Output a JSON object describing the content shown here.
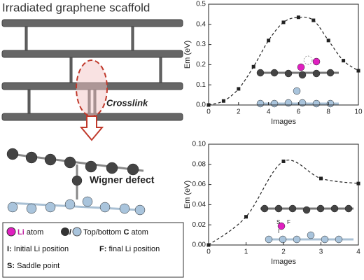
{
  "chart_data": [
    {
      "type": "line",
      "x": [
        0,
        1,
        2,
        3,
        4,
        5,
        6,
        7,
        8,
        9,
        10
      ],
      "values": [
        0.0,
        0.02,
        0.08,
        0.19,
        0.32,
        0.41,
        0.435,
        0.42,
        0.32,
        0.22,
        0.17
      ],
      "color": "#222222",
      "xlabel": "Images",
      "ylabel": "Em (eV)",
      "xlim": [
        0,
        10
      ],
      "xticks": [
        0,
        2,
        4,
        6,
        8,
        10
      ],
      "ylim": [
        0,
        0.5
      ],
      "yticks": [
        {
          "value": 0,
          "label": "0.0"
        },
        0.1,
        0.2,
        0.3,
        0.4,
        0.5
      ]
    },
    {
      "type": "line",
      "x": [
        0,
        1,
        2,
        3,
        4
      ],
      "values": [
        0.0,
        0.028,
        0.083,
        0.066,
        0.061
      ],
      "color": "#222222",
      "xlabel": "Images",
      "ylabel": "Em (eV)",
      "xlim": [
        0,
        4
      ],
      "xticks": [
        0,
        1,
        2,
        3,
        4
      ],
      "ylim": [
        0,
        0.1
      ],
      "yticks": [
        {
          "value": 0,
          "label": "0.00"
        },
        0.02,
        0.04,
        0.06,
        0.08,
        {
          "value": 0.1,
          "label": "0.10"
        }
      ],
      "annotations": [
        "S",
        "F",
        "I"
      ]
    }
  ],
  "figure": {
    "title": "Irradiated graphene scaffold",
    "crosslink": "Crosslink",
    "defect": "Wigner defect",
    "legend": [
      {
        "key": "Li",
        "text": "atom"
      },
      {
        "key": "/",
        "text": "Top/bottom"
      },
      {
        "key": "C",
        "text": "atom"
      },
      {
        "key": "I:",
        "text": "Initial Li position"
      },
      {
        "key": "F:",
        "text": "final Li position"
      },
      {
        "key": "S:",
        "text": "Saddle point"
      }
    ]
  }
}
